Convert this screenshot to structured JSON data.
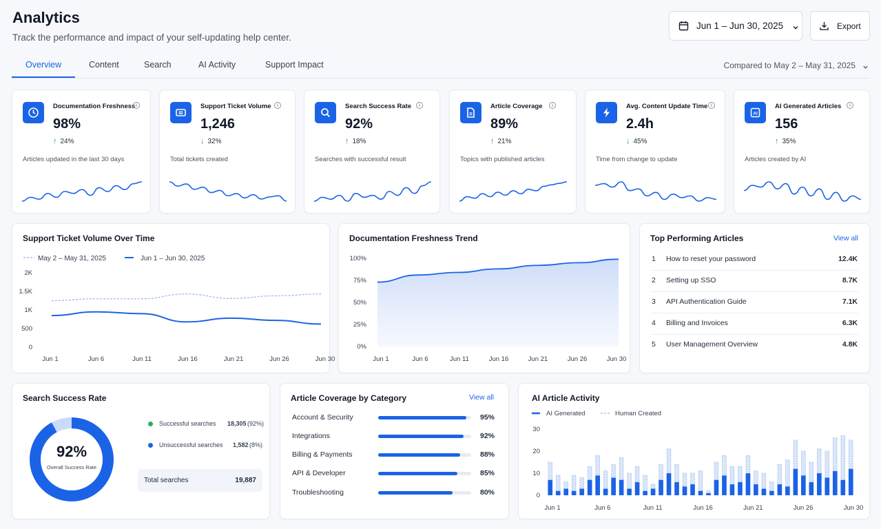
{
  "header": {
    "title": "Analytics",
    "subtitle": "Track the performance and impact of your self-updating help center.",
    "date_range": "Jun 1 – Jun 30, 2025",
    "export_label": "Export"
  },
  "tabs": [
    {
      "label": "Overview",
      "active": true
    },
    {
      "label": "Content",
      "active": false
    },
    {
      "label": "Search",
      "active": false
    },
    {
      "label": "AI Activity",
      "active": false
    },
    {
      "label": "Support Impact",
      "active": false
    }
  ],
  "compare_label": "Compared to May 2 – May 31, 2025",
  "kpis": [
    {
      "label": "Documentation Freshness",
      "value": "98%",
      "delta": "24%",
      "direction": "up",
      "note": "Articles updated in the last 30 days",
      "icon": "clock-icon",
      "trend": [
        12,
        14,
        13,
        16,
        14,
        17,
        16,
        18,
        15,
        19,
        17,
        20,
        18,
        21,
        22
      ]
    },
    {
      "label": "Support Ticket Volume",
      "value": "1,246",
      "delta": "32%",
      "direction": "down",
      "note": "Total tickets created",
      "icon": "ticket-icon",
      "trend": [
        24,
        20,
        22,
        17,
        19,
        14,
        16,
        11,
        13,
        9,
        12,
        8,
        10,
        11,
        6
      ]
    },
    {
      "label": "Search Success Rate",
      "value": "92%",
      "delta": "18%",
      "direction": "up",
      "note": "Searches with successful result",
      "icon": "search-icon",
      "trend": [
        14,
        16,
        15,
        17,
        14,
        18,
        16,
        17,
        15,
        19,
        17,
        21,
        18,
        22,
        24
      ]
    },
    {
      "label": "Article Coverage",
      "value": "89%",
      "delta": "21%",
      "direction": "up",
      "note": "Topics with published articles",
      "icon": "document-icon",
      "trend": [
        10,
        13,
        12,
        15,
        13,
        16,
        14,
        17,
        15,
        18,
        17,
        20,
        21,
        22,
        23
      ]
    },
    {
      "label": "Avg. Content Update Time",
      "value": "2.4h",
      "delta": "45%",
      "direction": "down",
      "note": "Time from change to update",
      "icon": "bolt-icon",
      "trend": [
        20,
        21,
        19,
        22,
        17,
        18,
        14,
        16,
        12,
        15,
        13,
        14,
        11,
        13,
        12
      ]
    },
    {
      "label": "AI Generated Articles",
      "value": "156",
      "delta": "35%",
      "direction": "up",
      "note": "Articles created by AI",
      "icon": "ai-icon",
      "trend": [
        16,
        19,
        18,
        21,
        17,
        20,
        14,
        18,
        13,
        17,
        11,
        15,
        10,
        13,
        11
      ]
    }
  ],
  "ticket_chart": {
    "title": "Support Ticket Volume Over Time",
    "legend_prev": "May 2 – May 31, 2025",
    "legend_curr": "Jun 1 – Jun 30, 2025",
    "y_ticks": [
      "2K",
      "1.5K",
      "1K",
      "500",
      "0"
    ],
    "x_ticks": [
      "Jun 1",
      "Jun 6",
      "Jun 11",
      "Jun 16",
      "Jun 21",
      "Jun 26",
      "Jun 30"
    ]
  },
  "chart_data": [
    {
      "type": "line",
      "title": "Support Ticket Volume Over Time",
      "x": [
        "Jun 1",
        "Jun 6",
        "Jun 11",
        "Jun 16",
        "Jun 21",
        "Jun 26",
        "Jun 30"
      ],
      "ylim": [
        0,
        2000
      ],
      "legend": "top-left",
      "series": [
        {
          "name": "May 2 – May 31, 2025",
          "values": [
            1250,
            1300,
            1300,
            1430,
            1310,
            1380,
            1430
          ],
          "style": "dashed",
          "color": "#93b4ec"
        },
        {
          "name": "Jun 1 – Jun 30, 2025",
          "values": [
            850,
            950,
            900,
            680,
            780,
            720,
            620
          ],
          "style": "solid",
          "color": "#1b63e6"
        }
      ]
    },
    {
      "type": "area",
      "title": "Documentation Freshness Trend",
      "x": [
        "Jun 1",
        "Jun 6",
        "Jun 11",
        "Jun 16",
        "Jun 21",
        "Jun 26",
        "Jun 30"
      ],
      "ylim": [
        0,
        100
      ],
      "y_ticks": [
        "100%",
        "75%",
        "50%",
        "25%",
        "0%"
      ],
      "series": [
        {
          "name": "",
          "values": [
            73,
            81,
            84,
            88,
            92,
            95,
            99
          ],
          "color": "#1b63e6"
        }
      ]
    },
    {
      "type": "pie",
      "title": "Search Success Rate",
      "center_value": "92%",
      "center_label": "Overall Success Rate",
      "slices": [
        {
          "name": "Successful searches",
          "value": 18305,
          "pct": "(92%)",
          "display": "18,305",
          "color": "#1b63e6"
        },
        {
          "name": "Unsuccessful searches",
          "value": 1582,
          "pct": "(8%)",
          "display": "1,582",
          "color": "#c9dafb"
        }
      ],
      "total_label": "Total searches",
      "total_value": "19,887"
    },
    {
      "type": "bar",
      "title": "Article Coverage by Category",
      "categories": [
        "Account & Security",
        "Integrations",
        "Billing & Payments",
        "API & Developer",
        "Troubleshooting"
      ],
      "values": [
        95,
        92,
        88,
        85,
        80
      ],
      "labels": [
        "95%",
        "92%",
        "88%",
        "85%",
        "80%"
      ]
    },
    {
      "type": "bar",
      "title": "AI Article Activity",
      "x_ticks": [
        "Jun 1",
        "Jun 6",
        "Jun 11",
        "Jun 16",
        "Jun 21",
        "Jun 26",
        "Jun 30"
      ],
      "y_ticks": [
        "30",
        "20",
        "10",
        "0"
      ],
      "ylim": [
        0,
        30
      ],
      "series": [
        {
          "name": "AI Generated",
          "values": [
            7,
            2,
            3,
            2,
            3,
            7,
            9,
            3,
            8,
            7,
            3,
            6,
            2,
            3,
            7,
            10,
            6,
            4,
            5,
            2,
            1,
            7,
            9,
            5,
            6,
            10,
            5,
            3,
            2,
            5,
            4,
            12,
            9,
            6,
            10,
            8,
            11,
            7,
            12
          ]
        },
        {
          "name": "Human Created",
          "values": [
            8,
            7,
            3,
            7,
            5,
            6,
            9,
            8,
            6,
            10,
            7,
            7,
            7,
            2,
            7,
            11,
            8,
            6,
            5,
            9,
            1,
            8,
            9,
            8,
            7,
            8,
            6,
            7,
            4,
            9,
            12,
            13,
            11,
            9,
            11,
            12,
            15,
            20,
            13
          ]
        }
      ]
    }
  ],
  "freshness_chart": {
    "title": "Documentation Freshness Trend",
    "y_ticks": [
      "100%",
      "75%",
      "50%",
      "25%",
      "0%"
    ],
    "x_ticks": [
      "Jun 1",
      "Jun 6",
      "Jun 11",
      "Jun 16",
      "Jun 21",
      "Jun 26",
      "Jun 30"
    ]
  },
  "top_articles": {
    "title": "Top Performing Articles",
    "view_all": "View all",
    "items": [
      {
        "rank": "1",
        "name": "How to reset your password",
        "value": "12.4K"
      },
      {
        "rank": "2",
        "name": "Setting up SSO",
        "value": "8.7K"
      },
      {
        "rank": "3",
        "name": "API Authentication Guide",
        "value": "7.1K"
      },
      {
        "rank": "4",
        "name": "Billing and Invoices",
        "value": "6.3K"
      },
      {
        "rank": "5",
        "name": "User Management Overview",
        "value": "4.8K"
      }
    ]
  },
  "search_rate": {
    "title": "Search Success Rate",
    "center_value": "92%",
    "center_label": "Overall Success Rate",
    "successful_label": "Successful searches",
    "successful_value": "18,305",
    "successful_pct": "(92%)",
    "unsuccessful_label": "Unsuccessful searches",
    "unsuccessful_value": "1,582",
    "unsuccessful_pct": "(8%)",
    "total_label": "Total searches",
    "total_value": "19,887"
  },
  "coverage": {
    "title": "Article Coverage by Category",
    "view_all": "View all",
    "items": [
      {
        "name": "Account & Security",
        "pct": 95,
        "label": "95%"
      },
      {
        "name": "Integrations",
        "pct": 92,
        "label": "92%"
      },
      {
        "name": "Billing & Payments",
        "pct": 88,
        "label": "88%"
      },
      {
        "name": "API & Developer",
        "pct": 85,
        "label": "85%"
      },
      {
        "name": "Troubleshooting",
        "pct": 80,
        "label": "80%"
      }
    ]
  },
  "ai_activity": {
    "title": "AI Article Activity",
    "legend_ai": "AI Generated",
    "legend_human": "Human Created",
    "y_ticks": [
      "30",
      "20",
      "10",
      "0"
    ],
    "x_ticks": [
      "Jun 1",
      "Jun 6",
      "Jun 11",
      "Jun 16",
      "Jun 21",
      "Jun 26",
      "Jun 30"
    ]
  },
  "colors": {
    "accent": "#1b63e6",
    "accent_light": "#93b4ec",
    "positive": "#16a34a"
  }
}
